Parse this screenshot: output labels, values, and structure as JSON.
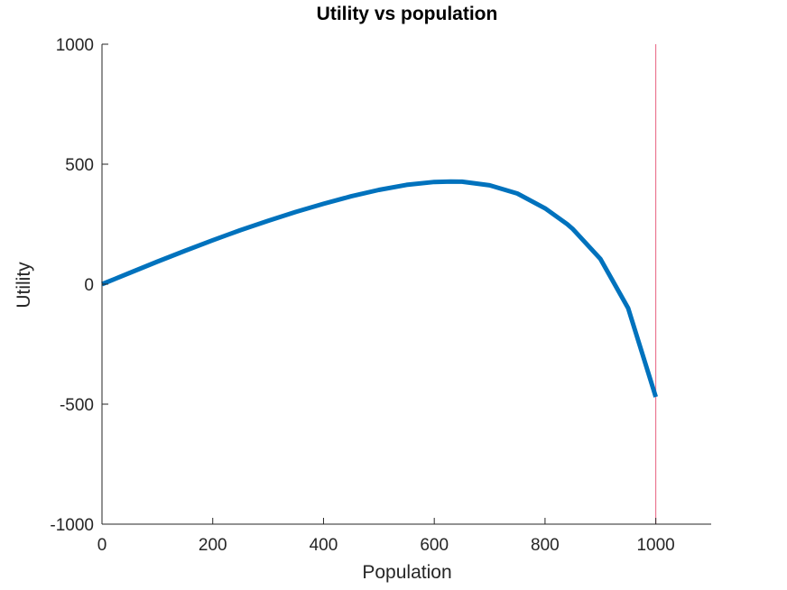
{
  "chart_data": {
    "type": "line",
    "title": "Utility vs population",
    "xlabel": "Population",
    "ylabel": "Utility",
    "xlim": [
      0,
      1100
    ],
    "ylim": [
      -1000,
      1000
    ],
    "xticks": [
      "0",
      "200",
      "400",
      "600",
      "800",
      "1000"
    ],
    "yticks": [
      "-1000",
      "-500",
      "0",
      "500",
      "1000"
    ],
    "grid": false,
    "series": [
      {
        "color": "#0072BD",
        "x": [
          0,
          50,
          100,
          150,
          200,
          250,
          300,
          350,
          400,
          450,
          500,
          550,
          600,
          630,
          650,
          700,
          750,
          800,
          840,
          850,
          900,
          950,
          1000
        ],
        "y": [
          0,
          47,
          94,
          139,
          183,
          225,
          264,
          301,
          335,
          366,
          393,
          414,
          426,
          428,
          427,
          412,
          378,
          316,
          250,
          230,
          105,
          -100,
          -470
        ]
      }
    ],
    "reference_line": {
      "x": 1000,
      "color": "#E8607E"
    }
  }
}
